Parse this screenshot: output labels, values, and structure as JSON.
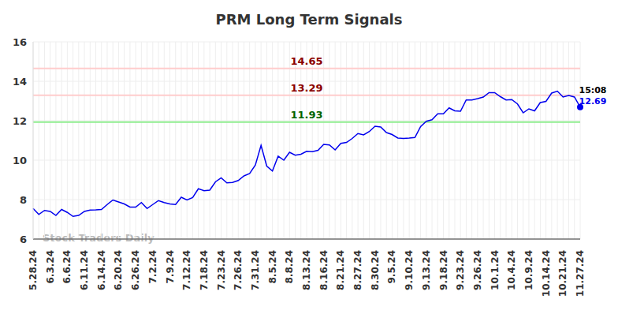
{
  "chart_data": {
    "type": "line",
    "title": "PRM Long Term Signals",
    "watermark": "Stock Traders Daily",
    "categories": [
      "5.28.24",
      null,
      null,
      "6.3.24",
      null,
      null,
      "6.6.24",
      null,
      null,
      "6.11.24",
      null,
      null,
      "6.14.24",
      null,
      null,
      "6.20.24",
      null,
      null,
      "6.26.24",
      null,
      null,
      "7.2.24",
      null,
      null,
      "7.9.24",
      null,
      null,
      "7.12.24",
      null,
      null,
      "7.18.24",
      null,
      null,
      "7.23.24",
      null,
      null,
      "7.26.24",
      null,
      null,
      "7.31.24",
      null,
      null,
      "8.5.24",
      null,
      null,
      "8.8.24",
      null,
      null,
      "8.13.24",
      null,
      null,
      "8.16.24",
      null,
      null,
      "8.21.24",
      null,
      null,
      "8.27.24",
      null,
      null,
      "8.30.24",
      null,
      null,
      "9.5.24",
      null,
      null,
      "9.10.24",
      null,
      null,
      "9.13.24",
      null,
      null,
      "9.18.24",
      null,
      null,
      "9.23.24",
      null,
      null,
      "9.26.24",
      null,
      null,
      "10.1.24",
      null,
      null,
      "10.4.24",
      null,
      null,
      "10.9.24",
      null,
      null,
      "10.14.24",
      null,
      null,
      "10.21.24",
      null,
      null,
      "11.27.24"
    ],
    "values": [
      7.55,
      7.25,
      7.45,
      7.4,
      7.2,
      7.5,
      7.35,
      7.15,
      7.2,
      7.4,
      7.47,
      7.48,
      7.5,
      7.75,
      7.98,
      7.88,
      7.78,
      7.62,
      7.62,
      7.85,
      7.55,
      7.75,
      7.95,
      7.85,
      7.78,
      7.75,
      8.12,
      7.98,
      8.1,
      8.55,
      8.45,
      8.48,
      8.9,
      9.1,
      8.85,
      8.87,
      8.97,
      9.2,
      9.32,
      9.75,
      10.75,
      9.7,
      9.45,
      10.2,
      10.0,
      10.4,
      10.25,
      10.3,
      10.45,
      10.43,
      10.5,
      10.8,
      10.77,
      10.52,
      10.85,
      10.9,
      11.1,
      11.35,
      11.28,
      11.45,
      11.72,
      11.68,
      11.4,
      11.3,
      11.12,
      11.1,
      11.12,
      11.15,
      11.7,
      11.97,
      12.05,
      12.35,
      12.35,
      12.65,
      12.5,
      12.48,
      13.05,
      13.05,
      13.12,
      13.2,
      13.42,
      13.42,
      13.22,
      13.05,
      13.07,
      12.85,
      12.4,
      12.6,
      12.5,
      12.92,
      12.98,
      13.4,
      13.5,
      13.2,
      13.28,
      13.2,
      12.69
    ],
    "color": "#0000ee",
    "ylim": [
      6,
      16
    ],
    "yticks": [
      6,
      8,
      10,
      12,
      14,
      16
    ],
    "grid": true,
    "annotations": [
      {
        "value": 14.65,
        "label": "14.65",
        "color": "#8b0000",
        "line_color": "#ffcccc"
      },
      {
        "value": 13.29,
        "label": "13.29",
        "color": "#8b0000",
        "line_color": "#ffcccc"
      },
      {
        "value": 11.93,
        "label": "11.93",
        "color": "#006400",
        "line_color": "#90ee90"
      }
    ],
    "last_point": {
      "time": "15:08",
      "value": 12.69
    }
  }
}
